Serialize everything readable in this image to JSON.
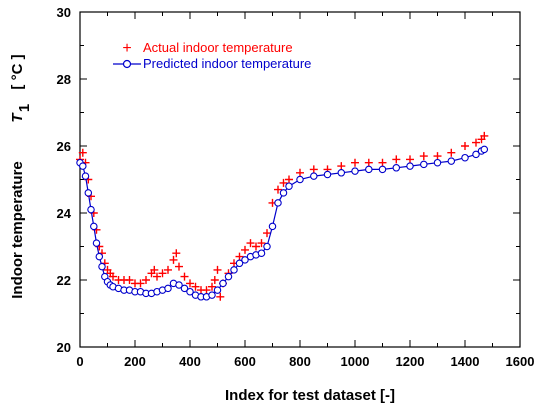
{
  "chart_data": {
    "type": "scatter",
    "title": "",
    "xlabel": "Index for test dataset    [-]",
    "ylabel_text": "Indoor temperature",
    "ylabel_symbol": "T",
    "ylabel_subscript": "1",
    "ylabel_unit": "[ °C ]",
    "xlim": [
      0,
      1600
    ],
    "ylim": [
      20,
      30
    ],
    "xticks": [
      "0",
      "200",
      "400",
      "600",
      "800",
      "1000",
      "1200",
      "1400",
      "1600"
    ],
    "yticks": [
      "20",
      "22",
      "24",
      "26",
      "28",
      "30"
    ],
    "grid": false,
    "legend_position": "top-left",
    "series": [
      {
        "name": "Actual indoor temperature",
        "marker": "plus",
        "color": "#ff0000",
        "x": [
          0,
          10,
          20,
          30,
          40,
          50,
          60,
          70,
          80,
          90,
          100,
          110,
          120,
          140,
          160,
          180,
          200,
          220,
          240,
          260,
          270,
          280,
          300,
          320,
          340,
          350,
          360,
          380,
          400,
          420,
          440,
          460,
          480,
          490,
          500,
          510,
          520,
          540,
          560,
          580,
          600,
          620,
          640,
          660,
          680,
          700,
          720,
          740,
          760,
          800,
          850,
          900,
          950,
          1000,
          1050,
          1100,
          1150,
          1200,
          1250,
          1300,
          1350,
          1400,
          1440,
          1460,
          1470
        ],
        "y": [
          25.6,
          25.8,
          25.5,
          25.0,
          24.5,
          24.0,
          23.5,
          23.0,
          22.8,
          22.5,
          22.3,
          22.2,
          22.1,
          22.0,
          22.0,
          22.0,
          21.9,
          21.9,
          22.0,
          22.2,
          22.3,
          22.1,
          22.2,
          22.3,
          22.6,
          22.8,
          22.4,
          22.1,
          21.9,
          21.8,
          21.7,
          21.7,
          21.8,
          22.0,
          22.3,
          21.5,
          21.9,
          22.2,
          22.5,
          22.7,
          22.9,
          23.1,
          23.0,
          23.1,
          23.4,
          24.3,
          24.7,
          24.9,
          25.0,
          25.2,
          25.3,
          25.3,
          25.4,
          25.5,
          25.5,
          25.5,
          25.6,
          25.6,
          25.7,
          25.7,
          25.8,
          26.0,
          26.1,
          26.2,
          26.3
        ]
      },
      {
        "name": "Predicted indoor temperature",
        "marker": "circle",
        "color": "#0000cc",
        "x": [
          0,
          10,
          20,
          30,
          40,
          50,
          60,
          70,
          80,
          90,
          100,
          110,
          120,
          140,
          160,
          180,
          200,
          220,
          240,
          260,
          280,
          300,
          320,
          340,
          360,
          380,
          400,
          420,
          440,
          460,
          480,
          500,
          520,
          540,
          560,
          580,
          600,
          620,
          640,
          660,
          680,
          700,
          720,
          740,
          760,
          800,
          850,
          900,
          950,
          1000,
          1050,
          1100,
          1150,
          1200,
          1250,
          1300,
          1350,
          1400,
          1440,
          1460,
          1470
        ],
        "y": [
          25.5,
          25.4,
          25.1,
          24.6,
          24.1,
          23.6,
          23.1,
          22.7,
          22.4,
          22.1,
          21.95,
          21.85,
          21.8,
          21.75,
          21.7,
          21.7,
          21.65,
          21.65,
          21.6,
          21.6,
          21.65,
          21.7,
          21.75,
          21.9,
          21.85,
          21.75,
          21.65,
          21.55,
          21.5,
          21.5,
          21.55,
          21.7,
          21.9,
          22.1,
          22.3,
          22.5,
          22.6,
          22.7,
          22.75,
          22.8,
          23.0,
          23.6,
          24.3,
          24.6,
          24.8,
          25.0,
          25.1,
          25.15,
          25.2,
          25.25,
          25.3,
          25.3,
          25.35,
          25.4,
          25.45,
          25.5,
          25.55,
          25.65,
          25.75,
          25.85,
          25.9
        ]
      }
    ]
  }
}
